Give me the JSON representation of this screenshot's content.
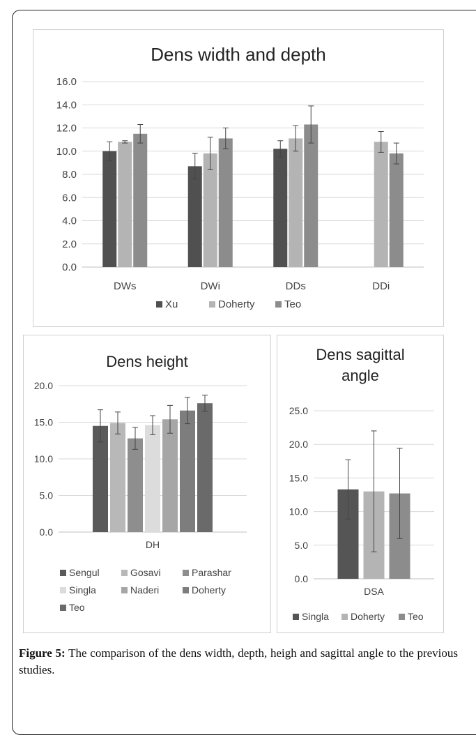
{
  "colors": {
    "Xu": "#505050",
    "Doherty_light": "#b4b4b4",
    "Teo_mid": "#8c8c8c",
    "Sengul": "#5a5a5a",
    "Gosavi": "#b8b8b8",
    "Parashar": "#8e8e8e",
    "Singla_light": "#dcdcdc",
    "Naderi": "#a6a6a6",
    "Doherty_mid": "#7d7d7d",
    "Teo_dark": "#6a6a6a",
    "Singla_dark": "#555555",
    "gridline": "#d9d9d9",
    "axis": "#bfbfbf"
  },
  "caption": {
    "lead": "Figure 5:",
    "text": " The comparison of the dens width, depth, heigh and sagittal angle to the previous studies."
  },
  "chart_data": [
    {
      "type": "bar",
      "title": "Dens width and depth",
      "categories": [
        "DWs",
        "DWi",
        "DDs",
        "DDi"
      ],
      "ylim": [
        0,
        16
      ],
      "yticks": [
        "0.0",
        "2.0",
        "4.0",
        "6.0",
        "8.0",
        "10.0",
        "12.0",
        "14.0",
        "16.0"
      ],
      "grid": true,
      "legend_position": "bottom",
      "series": [
        {
          "name": "Xu",
          "values": [
            10.0,
            8.7,
            10.2,
            null
          ],
          "errors": [
            0.8,
            1.1,
            0.7,
            null
          ],
          "color": "#505050"
        },
        {
          "name": "Doherty",
          "values": [
            10.8,
            9.8,
            11.1,
            10.8
          ],
          "errors": [
            0.1,
            1.4,
            1.1,
            0.9
          ],
          "color": "#b4b4b4"
        },
        {
          "name": "Teo",
          "values": [
            11.5,
            11.1,
            12.3,
            9.8
          ],
          "errors": [
            0.8,
            0.9,
            1.6,
            0.9
          ],
          "color": "#8c8c8c"
        }
      ]
    },
    {
      "type": "bar",
      "title": "Dens height",
      "categories": [
        "DH"
      ],
      "ylim": [
        0,
        20
      ],
      "yticks": [
        "0.0",
        "5.0",
        "10.0",
        "15.0",
        "20.0"
      ],
      "grid": true,
      "legend_position": "bottom",
      "series": [
        {
          "name": "Sengul",
          "values": [
            14.5
          ],
          "errors": [
            2.2
          ],
          "color": "#5a5a5a"
        },
        {
          "name": "Gosavi",
          "values": [
            14.9
          ],
          "errors": [
            1.5
          ],
          "color": "#b8b8b8"
        },
        {
          "name": "Parashar",
          "values": [
            12.8
          ],
          "errors": [
            1.5
          ],
          "color": "#8e8e8e"
        },
        {
          "name": "Singla",
          "values": [
            14.6
          ],
          "errors": [
            1.3
          ],
          "color": "#dcdcdc"
        },
        {
          "name": "Naderi",
          "values": [
            15.4
          ],
          "errors": [
            1.9
          ],
          "color": "#a6a6a6"
        },
        {
          "name": "Doherty",
          "values": [
            16.6
          ],
          "errors": [
            1.8
          ],
          "color": "#7d7d7d"
        },
        {
          "name": "Teo",
          "values": [
            17.6
          ],
          "errors": [
            1.1
          ],
          "color": "#6a6a6a"
        }
      ]
    },
    {
      "type": "bar",
      "title": "Dens sagittal angle",
      "title_lines": [
        "Dens sagittal",
        "angle"
      ],
      "categories": [
        "DSA"
      ],
      "ylim": [
        0,
        25
      ],
      "yticks": [
        "0.0",
        "5.0",
        "10.0",
        "15.0",
        "20.0",
        "25.0"
      ],
      "grid": true,
      "legend_position": "bottom",
      "series": [
        {
          "name": "Singla",
          "values": [
            13.3
          ],
          "errors": [
            4.4
          ],
          "color": "#555555"
        },
        {
          "name": "Doherty",
          "values": [
            13.0
          ],
          "errors": [
            9.0
          ],
          "color": "#b4b4b4"
        },
        {
          "name": "Teo",
          "values": [
            12.7
          ],
          "errors": [
            6.7
          ],
          "color": "#8c8c8c"
        }
      ]
    }
  ]
}
